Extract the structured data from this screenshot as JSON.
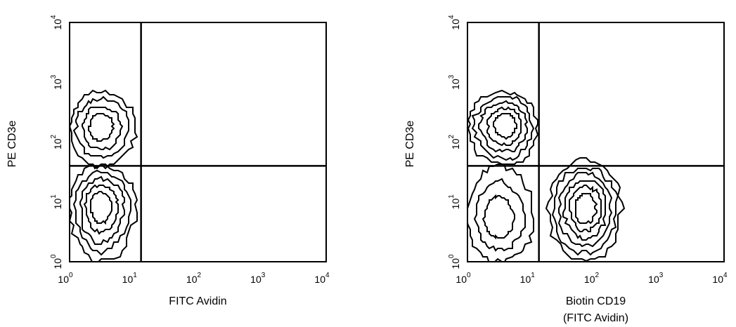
{
  "chart_data": [
    {
      "type": "contour",
      "xlabel": [
        "FITC Avidin"
      ],
      "ylabel": "PE CD3e",
      "scale": "log",
      "xlim": [
        1,
        10000
      ],
      "ylim": [
        1,
        10000
      ],
      "x_ticks": [
        {
          "base": "10",
          "exp": "0"
        },
        {
          "base": "10",
          "exp": "1"
        },
        {
          "base": "10",
          "exp": "2"
        },
        {
          "base": "10",
          "exp": "3"
        },
        {
          "base": "10",
          "exp": "4"
        }
      ],
      "y_ticks": [
        {
          "base": "10",
          "exp": "0"
        },
        {
          "base": "10",
          "exp": "1"
        },
        {
          "base": "10",
          "exp": "2"
        },
        {
          "base": "10",
          "exp": "3"
        },
        {
          "base": "10",
          "exp": "4"
        }
      ],
      "quadrant_gate": {
        "x": 13,
        "y": 40
      },
      "populations": [
        {
          "center_x": 3,
          "center_y": 9,
          "x_extent": [
            1,
            11
          ],
          "y_extent": [
            1,
            40
          ],
          "levels": 5
        },
        {
          "center_x": 3,
          "center_y": 180,
          "x_extent": [
            1,
            11
          ],
          "y_extent": [
            40,
            700
          ],
          "levels": 4
        }
      ],
      "colors": {
        "lines": "#000000",
        "background": "#ffffff"
      }
    },
    {
      "type": "contour",
      "xlabel": [
        "Biotin CD19",
        "(FITC Avidin)"
      ],
      "ylabel": "PE CD3e",
      "scale": "log",
      "xlim": [
        1,
        10000
      ],
      "ylim": [
        1,
        10000
      ],
      "x_ticks": [
        {
          "base": "10",
          "exp": "0"
        },
        {
          "base": "10",
          "exp": "1"
        },
        {
          "base": "10",
          "exp": "2"
        },
        {
          "base": "10",
          "exp": "3"
        },
        {
          "base": "10",
          "exp": "4"
        }
      ],
      "y_ticks": [
        {
          "base": "10",
          "exp": "0"
        },
        {
          "base": "10",
          "exp": "1"
        },
        {
          "base": "10",
          "exp": "2"
        },
        {
          "base": "10",
          "exp": "3"
        },
        {
          "base": "10",
          "exp": "4"
        }
      ],
      "quadrant_gate": {
        "x": 13,
        "y": 40
      },
      "populations": [
        {
          "center_x": 4,
          "center_y": 200,
          "x_extent": [
            1,
            12
          ],
          "y_extent": [
            40,
            700
          ],
          "levels": 5
        },
        {
          "center_x": 3,
          "center_y": 5,
          "x_extent": [
            1,
            11
          ],
          "y_extent": [
            1,
            40
          ],
          "levels": 3
        },
        {
          "center_x": 70,
          "center_y": 8,
          "x_extent": [
            18,
            250
          ],
          "y_extent": [
            1,
            50
          ],
          "levels": 6
        }
      ],
      "colors": {
        "lines": "#000000",
        "background": "#ffffff"
      }
    }
  ]
}
